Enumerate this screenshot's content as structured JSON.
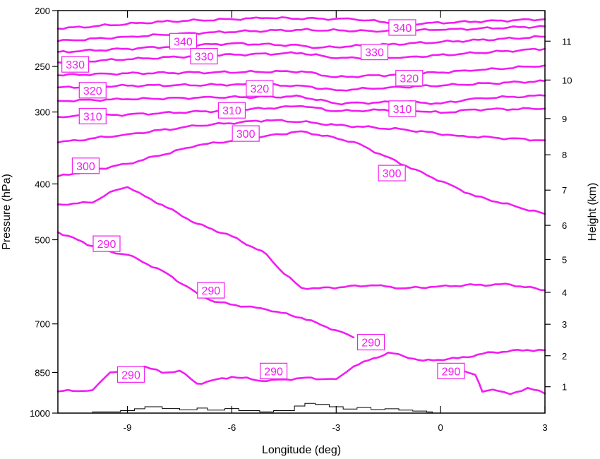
{
  "colors": {
    "contour": "#f21df2",
    "axis": "#000000",
    "terrain": "#000000",
    "background": "#ffffff"
  },
  "chart_data": {
    "type": "line",
    "title": "",
    "xlabel": "Longitude (deg)",
    "ylabel": "Pressure (hPa)",
    "y2label": "Height (km)",
    "xlim": [
      -11,
      3
    ],
    "ylim": [
      1000,
      200
    ],
    "yscale": "log",
    "x_ticks": [
      {
        "value": -9,
        "label": "-9"
      },
      {
        "value": -6,
        "label": "-6"
      },
      {
        "value": -3,
        "label": "-3"
      },
      {
        "value": 0,
        "label": "0"
      },
      {
        "value": 3,
        "label": "3"
      }
    ],
    "y_ticks": [
      {
        "value": 200,
        "label": "200"
      },
      {
        "value": 250,
        "label": "250"
      },
      {
        "value": 300,
        "label": "300"
      },
      {
        "value": 400,
        "label": "400"
      },
      {
        "value": 500,
        "label": "500"
      },
      {
        "value": 700,
        "label": "700"
      },
      {
        "value": 850,
        "label": "850"
      },
      {
        "value": 1000,
        "label": "1000"
      }
    ],
    "height_ticks": [
      {
        "pressure": 900,
        "label": "1"
      },
      {
        "pressure": 795,
        "label": "2"
      },
      {
        "pressure": 701,
        "label": "3"
      },
      {
        "pressure": 617,
        "label": "4"
      },
      {
        "pressure": 541,
        "label": "5"
      },
      {
        "pressure": 472,
        "label": "6"
      },
      {
        "pressure": 410,
        "label": "7"
      },
      {
        "pressure": 356,
        "label": "8"
      },
      {
        "pressure": 308,
        "label": "9"
      },
      {
        "pressure": 264,
        "label": "10"
      },
      {
        "pressure": 226,
        "label": "11"
      }
    ],
    "series": [
      {
        "level": "340",
        "x": [
          -11,
          -8,
          -5,
          -2.5,
          -1,
          1,
          3
        ],
        "p": [
          215,
          209,
          206,
          207,
          211,
          209,
          207
        ]
      },
      {
        "level": "340",
        "x": [
          -11,
          -9,
          -6.5,
          -4,
          -2,
          0,
          3
        ],
        "p": [
          226,
          222,
          218,
          216,
          217,
          216,
          213
        ]
      },
      {
        "level": "330",
        "x": [
          -11,
          -9,
          -6,
          -4,
          -3.5,
          -1.5,
          0.5,
          3
        ],
        "p": [
          236,
          233,
          228,
          230,
          232,
          229,
          226,
          222
        ]
      },
      {
        "level": "330",
        "x": [
          -11,
          -9,
          -6.5,
          -4,
          -3,
          -1,
          1,
          3
        ],
        "p": [
          246,
          243,
          239,
          237,
          242,
          241,
          237,
          233
        ]
      },
      {
        "level": "320",
        "x": [
          -11,
          -9,
          -6.5,
          -4,
          -3,
          -1,
          1,
          3
        ],
        "p": [
          259,
          257,
          256,
          255,
          261,
          258,
          254,
          249
        ]
      },
      {
        "level": "320",
        "x": [
          -11,
          -9,
          -6,
          -4,
          -3,
          -1.5,
          0.5,
          3
        ],
        "p": [
          272,
          270,
          269,
          270,
          275,
          272,
          269,
          265
        ]
      },
      {
        "level": "310",
        "x": [
          -11,
          -9,
          -6.5,
          -4,
          -3,
          -1,
          0,
          1,
          3
        ],
        "p": [
          287,
          285,
          283,
          282,
          290,
          288,
          290,
          284,
          281
        ]
      },
      {
        "level": "310",
        "x": [
          -11,
          -9,
          -6,
          -4,
          -3,
          -1,
          0,
          1,
          3
        ],
        "p": [
          306,
          303,
          298,
          293,
          299,
          297,
          301,
          297,
          296
        ]
      },
      {
        "level": "300",
        "x": [
          -11,
          -9,
          -7,
          -5,
          -4,
          -3,
          -1,
          0.5,
          3
        ],
        "p": [
          339,
          328,
          317,
          310,
          312,
          316,
          322,
          330,
          336
        ]
      },
      {
        "level": "300",
        "x": [
          -11,
          -9,
          -7,
          -5,
          -4,
          -2.5,
          -1,
          1,
          3
        ],
        "p": [
          388,
          369,
          343,
          330,
          324,
          338,
          372,
          420,
          451
        ]
      },
      {
        "level": "290",
        "x": [
          -11,
          -10,
          -9.5,
          -9,
          -8.5,
          -8,
          -7,
          -6,
          -5,
          -4.5,
          -4,
          -3.5,
          -2,
          -1,
          0,
          1,
          2,
          3
        ],
        "p": [
          434,
          431,
          413,
          405,
          420,
          435,
          469,
          493,
          530,
          573,
          606,
          607,
          600,
          607,
          602,
          599,
          598,
          612
        ]
      },
      {
        "level": "290",
        "x": [
          -11,
          -10,
          -9.5,
          -9,
          -8,
          -7,
          -6.5,
          -5,
          -4,
          -3,
          -2.5
        ],
        "p": [
          485,
          513,
          524,
          531,
          566,
          619,
          641,
          661,
          683,
          718,
          739
        ]
      },
      {
        "level": "290",
        "x": [
          -11,
          -10,
          -9.5,
          -9,
          -8.5,
          -8,
          -7.5,
          -7,
          -6,
          -5,
          -4,
          -3,
          -2.5,
          -1.5,
          -0.5,
          0.5,
          1.5,
          2.5,
          3
        ],
        "p": [
          917,
          912,
          850,
          842,
          830,
          851,
          844,
          889,
          865,
          880,
          869,
          873,
          830,
          785,
          811,
          803,
          784,
          777,
          778
        ]
      },
      {
        "level": "290",
        "x": [
          0.5,
          1,
          1.2,
          1.5,
          2,
          2.5,
          3
        ],
        "p": [
          836,
          858,
          918,
          910,
          927,
          904,
          925
        ]
      }
    ],
    "labels": [
      {
        "text": "340",
        "x": -7.4,
        "p": 226
      },
      {
        "text": "340",
        "x": -1.1,
        "p": 214
      },
      {
        "text": "330",
        "x": -10.5,
        "p": 248
      },
      {
        "text": "330",
        "x": -6.8,
        "p": 240
      },
      {
        "text": "330",
        "x": -1.9,
        "p": 236
      },
      {
        "text": "320",
        "x": -10.0,
        "p": 275
      },
      {
        "text": "320",
        "x": -5.2,
        "p": 273
      },
      {
        "text": "320",
        "x": -0.9,
        "p": 262
      },
      {
        "text": "310",
        "x": -10.0,
        "p": 305
      },
      {
        "text": "310",
        "x": -6.0,
        "p": 298
      },
      {
        "text": "310",
        "x": -1.1,
        "p": 296
      },
      {
        "text": "300",
        "x": -5.6,
        "p": 327
      },
      {
        "text": "300",
        "x": -10.2,
        "p": 372
      },
      {
        "text": "300",
        "x": -1.4,
        "p": 383
      },
      {
        "text": "290",
        "x": -9.6,
        "p": 508
      },
      {
        "text": "290",
        "x": -6.6,
        "p": 612
      },
      {
        "text": "290",
        "x": -2.0,
        "p": 753
      },
      {
        "text": "290",
        "x": -8.9,
        "p": 857
      },
      {
        "text": "290",
        "x": -4.8,
        "p": 845
      },
      {
        "text": "290",
        "x": 0.3,
        "p": 845
      }
    ],
    "terrain": {
      "x": [
        -10.0,
        -9.2,
        -8.8,
        -8.5,
        -8.0,
        -7.5,
        -7.0,
        -6.7,
        -6.2,
        -5.8,
        -5.2,
        -4.8,
        -4.2,
        -3.9,
        -3.6,
        -3.2,
        -2.8,
        -2.4,
        -2.0,
        -1.6,
        -1.2,
        -0.8,
        -0.4
      ],
      "p": [
        995,
        990,
        983,
        975,
        982,
        987,
        980,
        988,
        982,
        990,
        995,
        990,
        972,
        962,
        966,
        975,
        984,
        978,
        986,
        983,
        988,
        992,
        995
      ]
    }
  }
}
